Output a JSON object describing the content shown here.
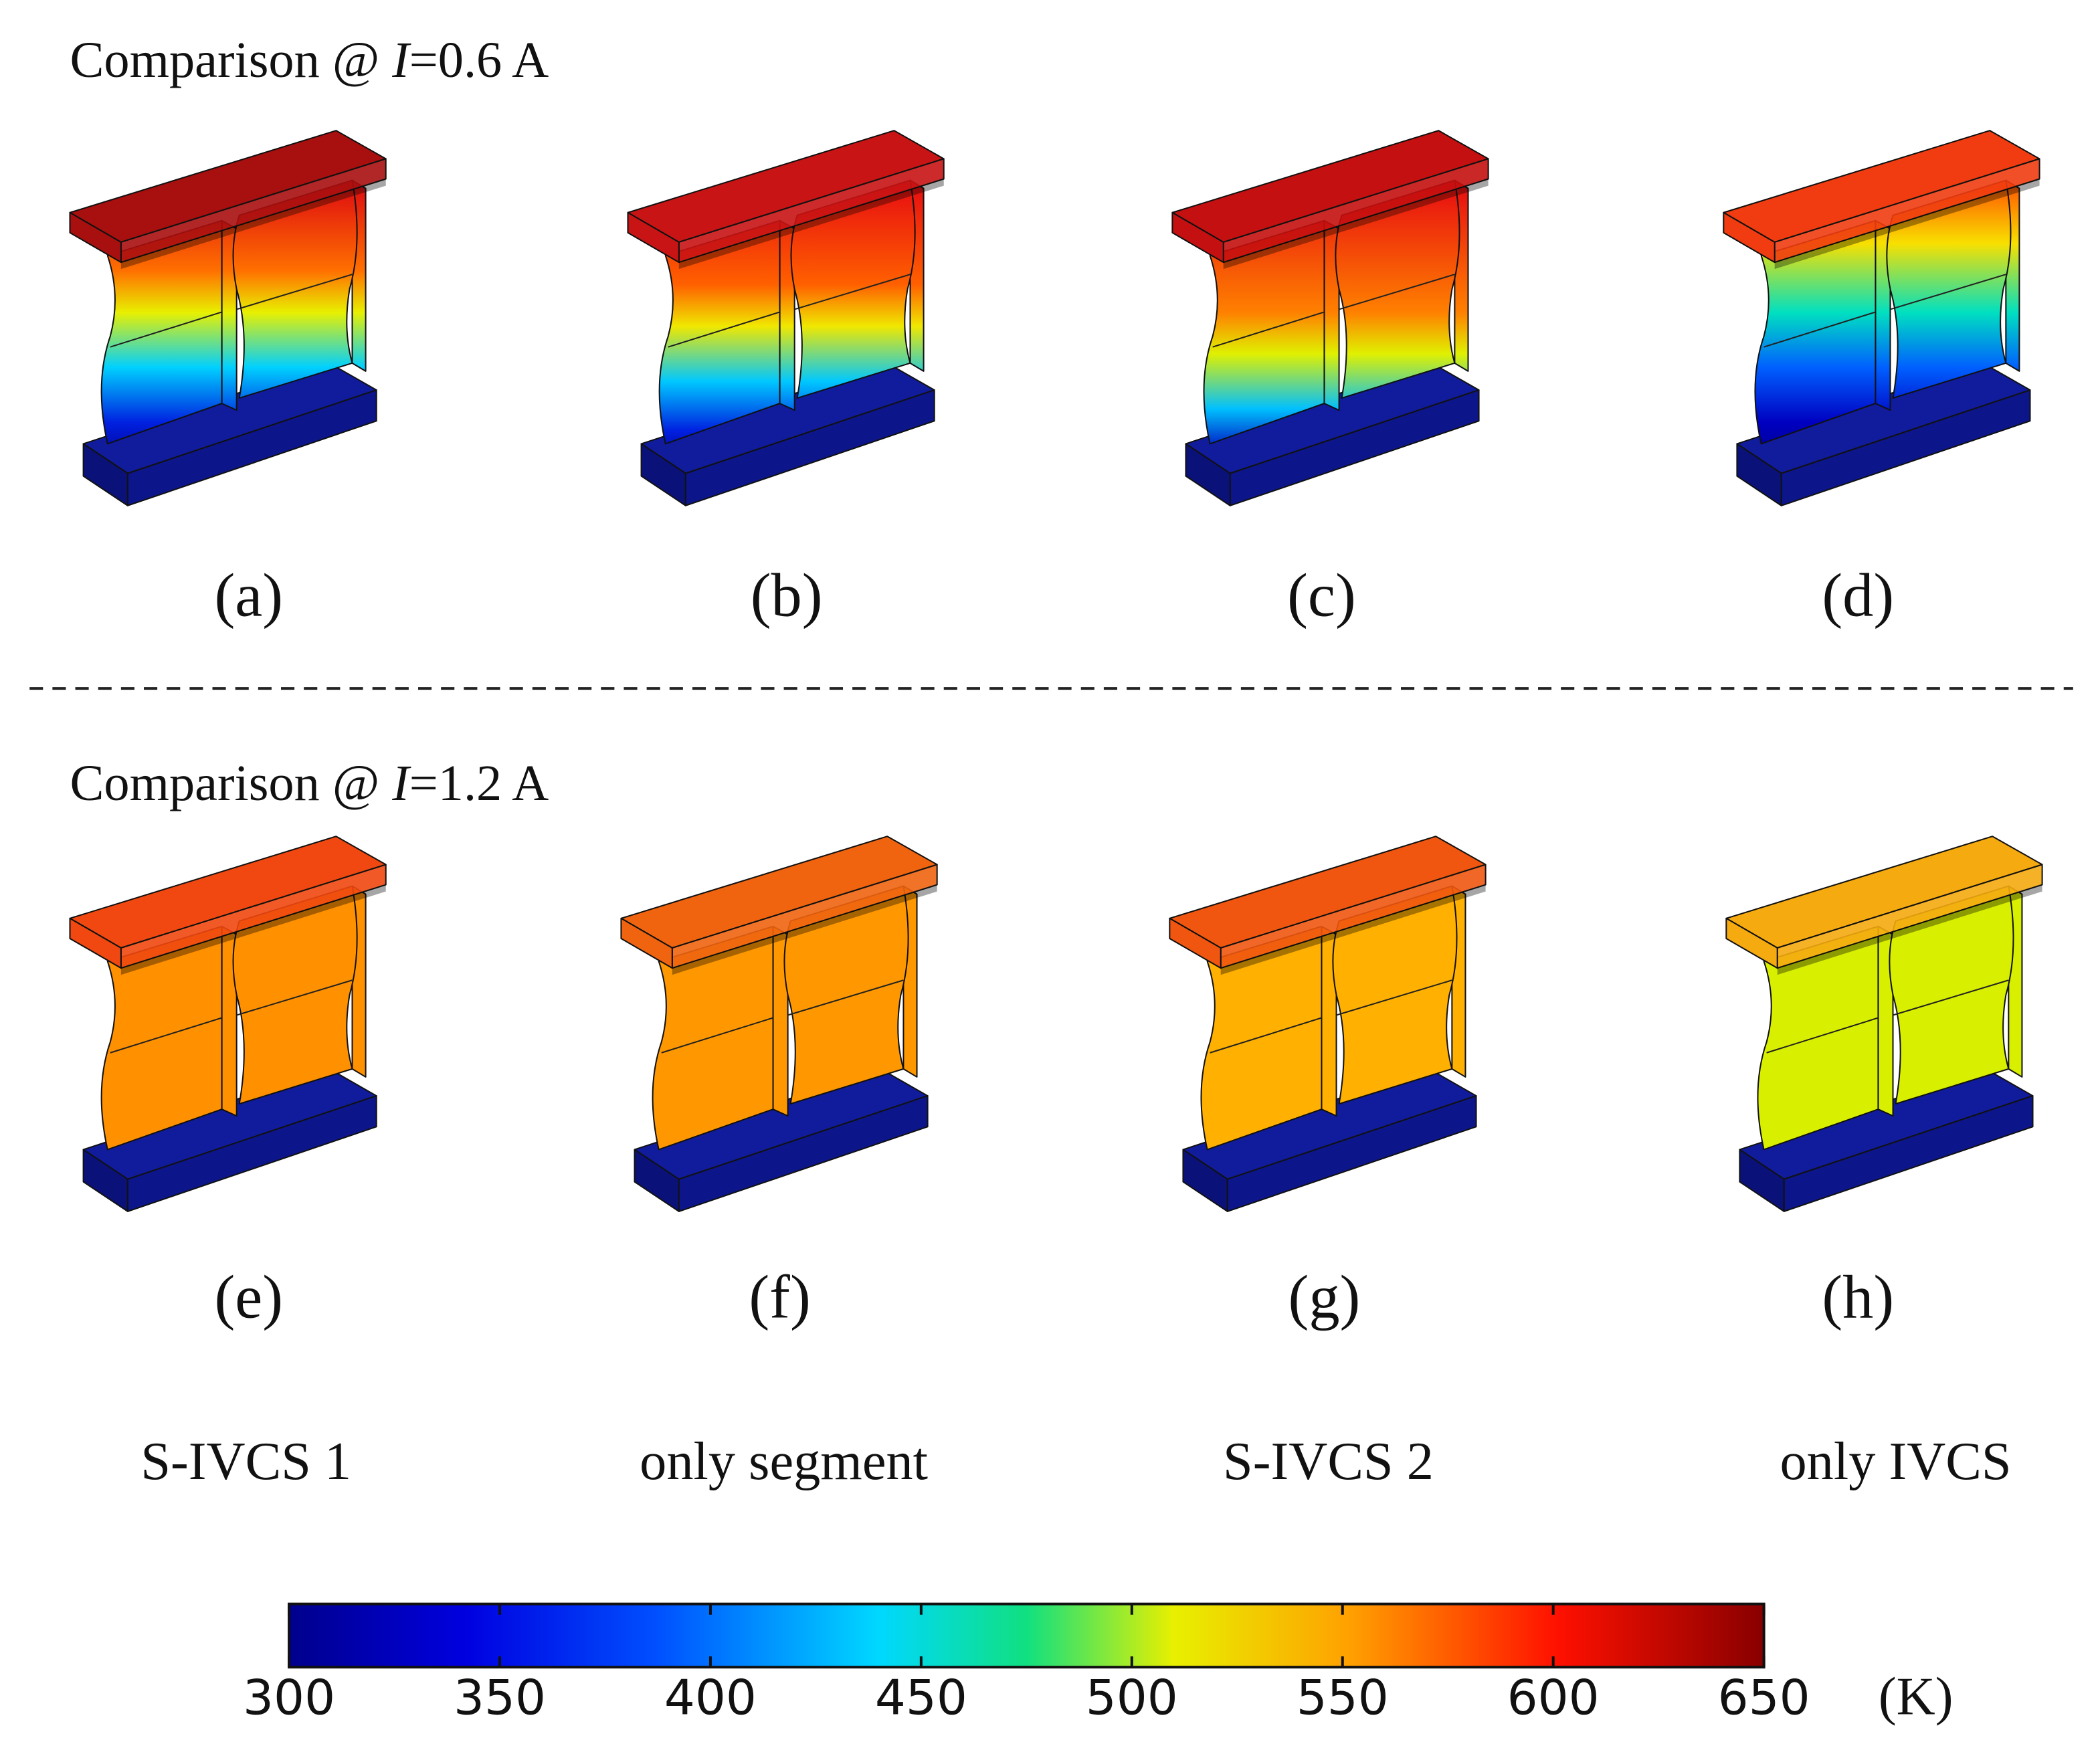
{
  "titles": [
    {
      "prefix": "Comparison @ ",
      "variable": "I",
      "suffix": "=0.6 A"
    },
    {
      "prefix": "Comparison @ ",
      "variable": "I",
      "suffix": "=1.2 A"
    }
  ],
  "panel_labels": [
    "(a)",
    "(b)",
    "(c)",
    "(d)",
    "(e)",
    "(f)",
    "(g)",
    "(h)"
  ],
  "column_names": [
    "S-IVCS 1",
    "only segment",
    "S-IVCS 2",
    "only IVCS"
  ],
  "colorbar": {
    "lim": [
      300,
      650
    ],
    "ticks": [
      300,
      350,
      400,
      450,
      500,
      550,
      600,
      650
    ],
    "unit": "(K)"
  }
}
